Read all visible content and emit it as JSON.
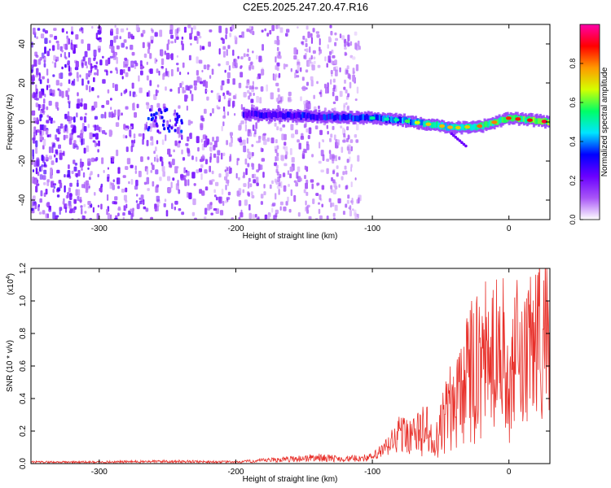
{
  "title": "C2E5.2025.247.20.47.R16",
  "chart_data": [
    {
      "type": "heatmap",
      "xlabel": "Height of straight line (km)",
      "ylabel": "Frequency (Hz)",
      "xlim": [
        -350,
        30
      ],
      "ylim": [
        -50,
        50
      ],
      "xticks": [
        -300,
        -200,
        -100,
        0
      ],
      "yticks": [
        -40,
        -20,
        0,
        20,
        40
      ],
      "colorbar": {
        "label": "Normalized spectral amplitude",
        "range": [
          0,
          1
        ],
        "ticks": [
          "0.0",
          "0.2",
          "0.4",
          "0.6",
          "0.8"
        ],
        "colors": [
          "#ffffff",
          "#a855f7",
          "#6a00ff",
          "#0000ff",
          "#00e5ff",
          "#00ff66",
          "#d4ff00",
          "#ff9900",
          "#ff0000",
          "#ff00aa"
        ]
      },
      "ridge": {
        "x": [
          -195,
          -150,
          -100,
          -80,
          -60,
          -40,
          -20,
          0,
          30
        ],
        "frequency": [
          4,
          3,
          2,
          1,
          -1,
          -3,
          -2,
          2,
          0
        ],
        "amplitude": [
          0.35,
          0.4,
          0.5,
          0.55,
          0.7,
          0.75,
          0.8,
          0.85,
          0.95
        ]
      },
      "noise_region": {
        "x_start": -350,
        "x_end": -110
      }
    },
    {
      "type": "line",
      "xlabel": "Height of straight line (km)",
      "ylabel": "SNR (10 * v/v)",
      "scale_label": "(x10",
      "scale_exponent": "4",
      "xlim": [
        -350,
        30
      ],
      "ylim": [
        0,
        1.2
      ],
      "xticks": [
        -300,
        -200,
        -100,
        0
      ],
      "yticks": [
        "0.0",
        "0.2",
        "0.4",
        "0.6",
        "0.8",
        "1.0",
        "1.2"
      ],
      "series": [
        {
          "color": "#e8302a",
          "x": [
            -350,
            -300,
            -250,
            -200,
            -160,
            -140,
            -120,
            -100,
            -90,
            -80,
            -70,
            -60,
            -55,
            -50,
            -40,
            -30,
            -25,
            -20,
            -15,
            -10,
            -5,
            0,
            5,
            10,
            20,
            30
          ],
          "y": [
            0.01,
            0.01,
            0.015,
            0.01,
            0.03,
            0.04,
            0.03,
            0.04,
            0.1,
            0.2,
            0.18,
            0.25,
            0.1,
            0.25,
            0.45,
            0.7,
            0.6,
            0.8,
            0.65,
            0.7,
            0.95,
            0.35,
            0.75,
            0.6,
            0.85,
            0.95
          ]
        }
      ]
    }
  ]
}
